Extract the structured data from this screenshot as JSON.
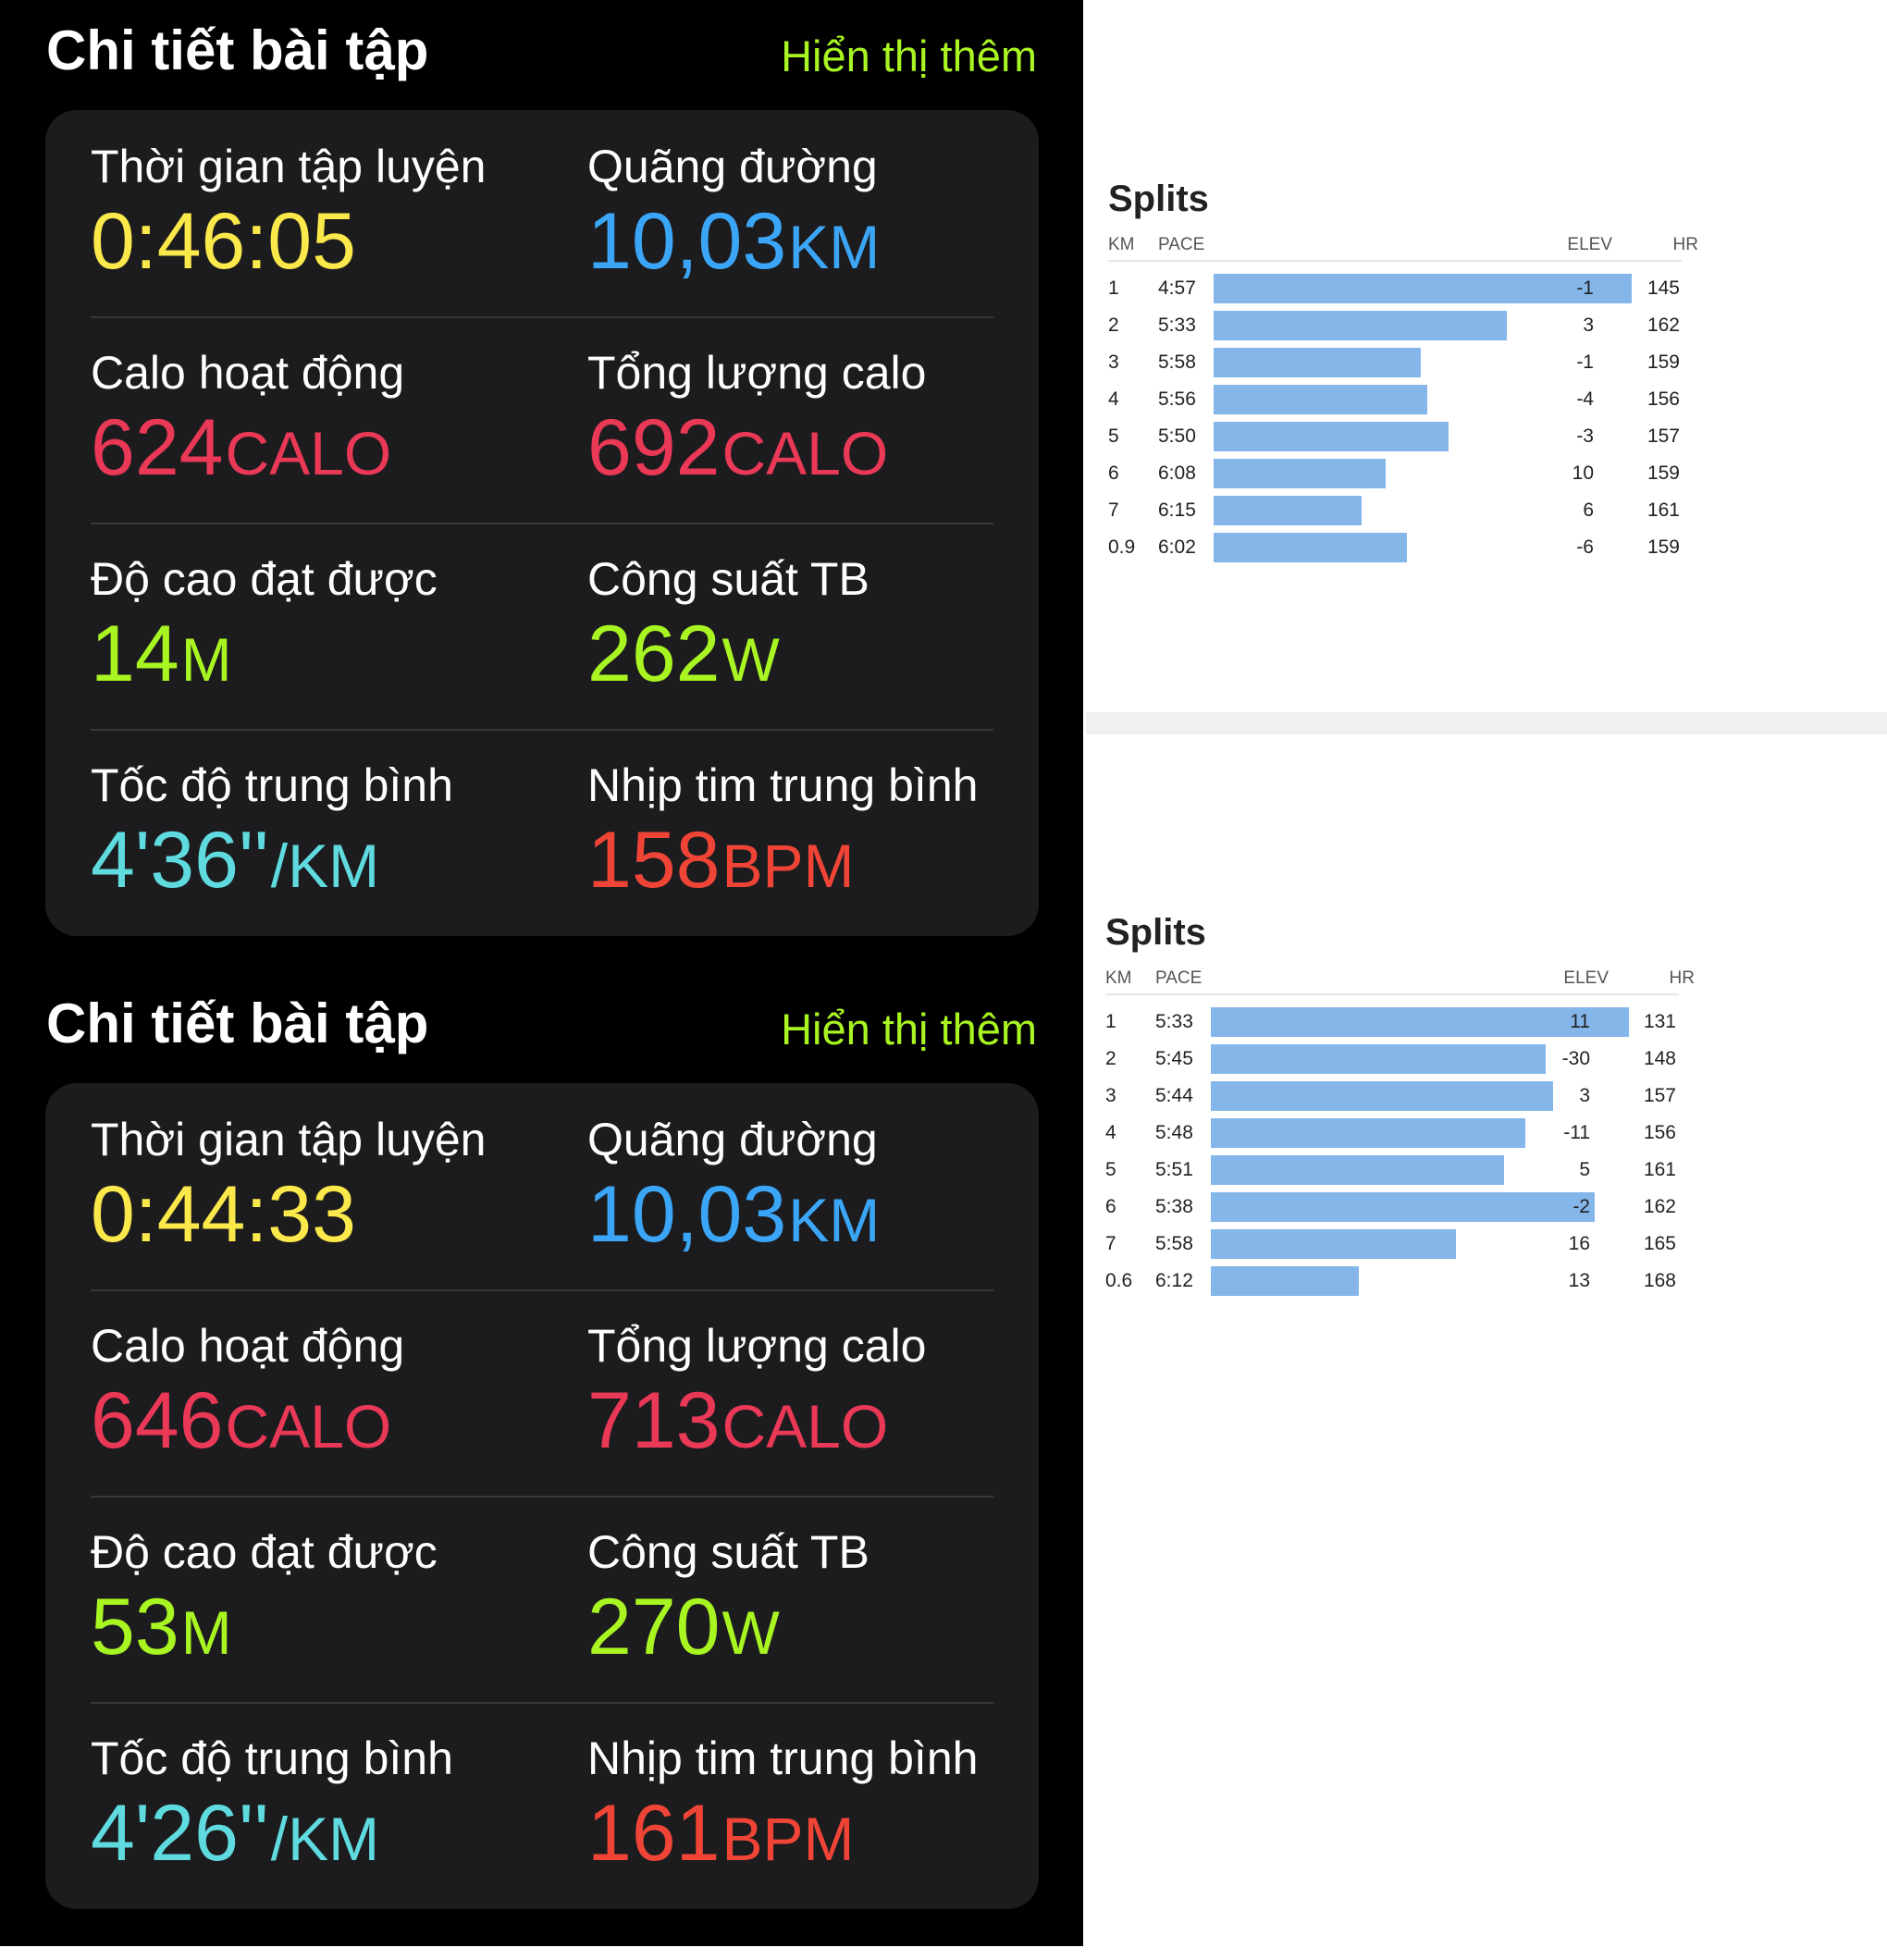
{
  "workouts": [
    {
      "title": "Chi tiết bài tập",
      "show_more": "Hiển thị thêm",
      "stats": [
        {
          "label": "Thời gian tập luyện",
          "value": "0:46:05",
          "unit": "",
          "color": "#fbe84a"
        },
        {
          "label": "Quãng đường",
          "value": "10,03",
          "unit": "KM",
          "color": "#3ba6f8"
        },
        {
          "label": "Calo hoạt động",
          "value": "624",
          "unit": "CALO",
          "color": "#ea3857"
        },
        {
          "label": "Tổng lượng calo",
          "value": "692",
          "unit": "CALO",
          "color": "#ea3857"
        },
        {
          "label": "Độ cao đạt được",
          "value": "14",
          "unit": "M",
          "color": "#a8f522"
        },
        {
          "label": "Công suất TB",
          "value": "262",
          "unit": "W",
          "color": "#a8f522"
        },
        {
          "label": "Tốc độ trung bình",
          "value": "4'36''",
          "unit": "/KM",
          "color": "#5fdbe0"
        },
        {
          "label": "Nhịp tim trung bình",
          "value": "158",
          "unit": "BPM",
          "color": "#f04536"
        }
      ]
    },
    {
      "title": "Chi tiết bài tập",
      "show_more": "Hiển thị thêm",
      "stats": [
        {
          "label": "Thời gian tập luyện",
          "value": "0:44:33",
          "unit": "",
          "color": "#fbe84a"
        },
        {
          "label": "Quãng đường",
          "value": "10,03",
          "unit": "KM",
          "color": "#3ba6f8"
        },
        {
          "label": "Calo hoạt động",
          "value": "646",
          "unit": "CALO",
          "color": "#ea3857"
        },
        {
          "label": "Tổng lượng calo",
          "value": "713",
          "unit": "CALO",
          "color": "#ea3857"
        },
        {
          "label": "Độ cao đạt được",
          "value": "53",
          "unit": "M",
          "color": "#a8f522"
        },
        {
          "label": "Công suất TB",
          "value": "270",
          "unit": "W",
          "color": "#a8f522"
        },
        {
          "label": "Tốc độ trung bình",
          "value": "4'26''",
          "unit": "/KM",
          "color": "#5fdbe0"
        },
        {
          "label": "Nhịp tim trung bình",
          "value": "161",
          "unit": "BPM",
          "color": "#f04536"
        }
      ]
    }
  ],
  "splits": [
    {
      "title": "Splits",
      "headers": {
        "km": "KM",
        "pace": "PACE",
        "elev": "ELEV",
        "hr": "HR"
      },
      "bar_color": "#85b6ea",
      "rows": [
        {
          "km": "1",
          "pace": "4:57",
          "elev": "-1",
          "hr": "145"
        },
        {
          "km": "2",
          "pace": "5:33",
          "elev": "3",
          "hr": "162"
        },
        {
          "km": "3",
          "pace": "5:58",
          "elev": "-1",
          "hr": "159"
        },
        {
          "km": "4",
          "pace": "5:56",
          "elev": "-4",
          "hr": "156"
        },
        {
          "km": "5",
          "pace": "5:50",
          "elev": "-3",
          "hr": "157"
        },
        {
          "km": "6",
          "pace": "6:08",
          "elev": "10",
          "hr": "159"
        },
        {
          "km": "7",
          "pace": "6:15",
          "elev": "6",
          "hr": "161"
        },
        {
          "km": "0.9",
          "pace": "6:02",
          "elev": "-6",
          "hr": "159"
        }
      ]
    },
    {
      "title": "Splits",
      "headers": {
        "km": "KM",
        "pace": "PACE",
        "elev": "ELEV",
        "hr": "HR"
      },
      "bar_color": "#85b6ea",
      "rows": [
        {
          "km": "1",
          "pace": "5:33",
          "elev": "11",
          "hr": "131"
        },
        {
          "km": "2",
          "pace": "5:45",
          "elev": "-30",
          "hr": "148"
        },
        {
          "km": "3",
          "pace": "5:44",
          "elev": "3",
          "hr": "157"
        },
        {
          "km": "4",
          "pace": "5:48",
          "elev": "-11",
          "hr": "156"
        },
        {
          "km": "5",
          "pace": "5:51",
          "elev": "5",
          "hr": "161"
        },
        {
          "km": "6",
          "pace": "5:38",
          "elev": "-2",
          "hr": "162"
        },
        {
          "km": "7",
          "pace": "5:58",
          "elev": "16",
          "hr": "165"
        },
        {
          "km": "0.6",
          "pace": "6:12",
          "elev": "13",
          "hr": "168"
        }
      ]
    }
  ]
}
